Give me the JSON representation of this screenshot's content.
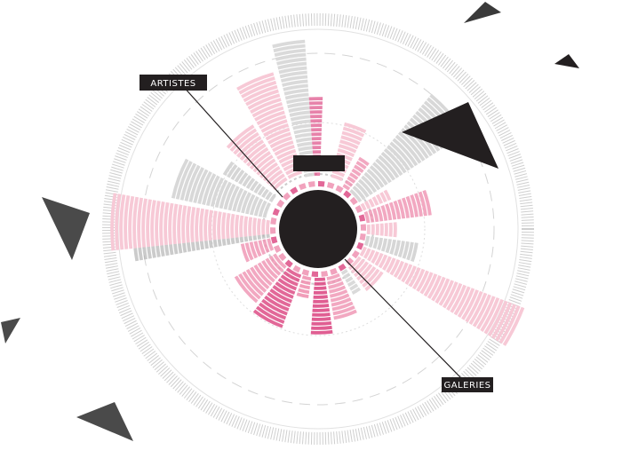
{
  "labels": {
    "artistes": "ARTISTES",
    "galeries": "GALERIES"
  },
  "colors": {
    "pink_light": "#f7c9d6",
    "pink_mid": "#ef92b1",
    "pink_strong": "#dd4d86",
    "grey_light": "#d6d6d6",
    "grey_mid": "#a9a9a9",
    "dark": "#231f20",
    "ring": "#cfcfcf"
  },
  "icons": {
    "hub": "filled-circle",
    "triangles": "triangle-shapes"
  }
}
